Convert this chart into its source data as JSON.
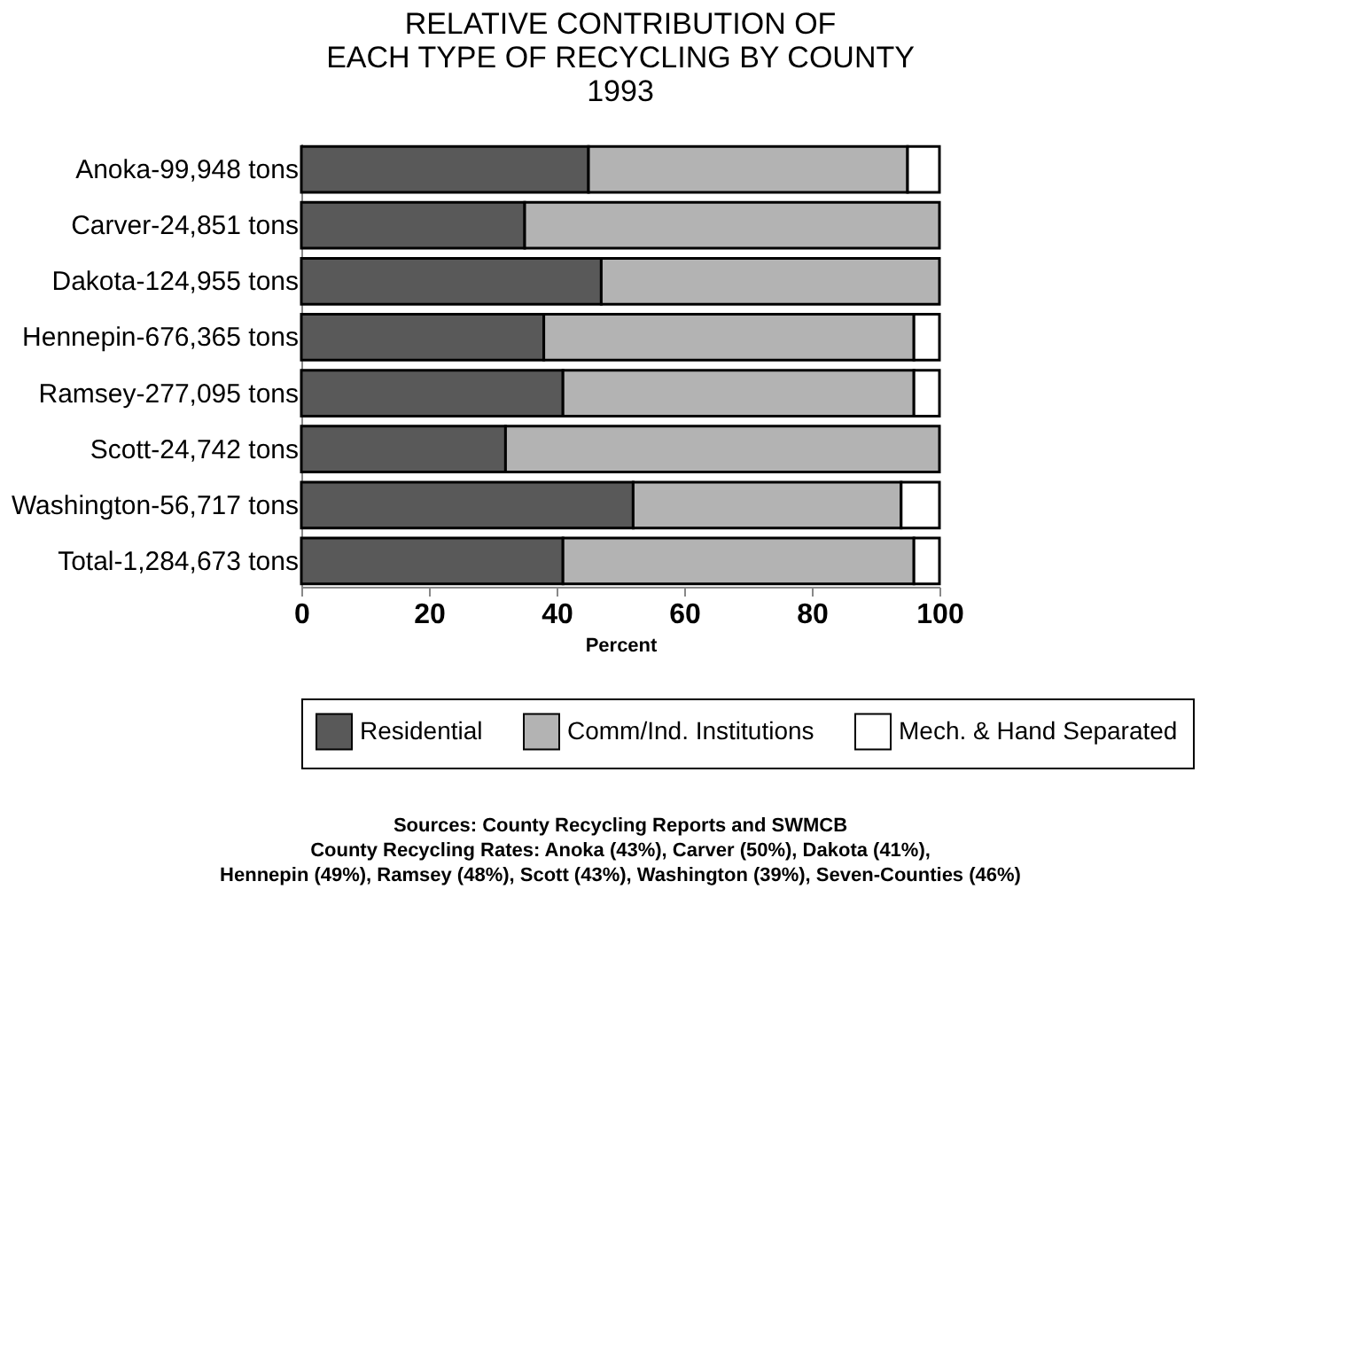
{
  "chart_data": {
    "type": "bar",
    "orientation": "horizontal",
    "stacked": true,
    "title": [
      "RELATIVE CONTRIBUTION OF",
      "EACH TYPE OF RECYCLING BY COUNTY",
      "1993"
    ],
    "xlabel": "Percent",
    "categories": [
      "Anoka-99,948 tons",
      "Carver-24,851 tons",
      "Dakota-124,955 tons",
      "Hennepin-676,365 tons",
      "Ramsey-277,095 tons",
      "Scott-24,742 tons",
      "Washington-56,717 tons",
      "Total-1,284,673 tons"
    ],
    "series": [
      {
        "name": "Residential",
        "color": "#595959",
        "values": [
          45,
          35,
          47,
          38,
          41,
          32,
          52,
          41
        ]
      },
      {
        "name": "Comm/Ind. Institutions",
        "color": "#b3b3b3",
        "values": [
          50,
          65,
          53,
          58,
          55,
          68,
          42,
          55
        ]
      },
      {
        "name": "Mech. & Hand Separated",
        "color": "#ffffff",
        "values": [
          5,
          0,
          0,
          4,
          4,
          0,
          6,
          4
        ]
      }
    ],
    "xlim": [
      0,
      100
    ],
    "xticks": [
      0,
      20,
      40,
      60,
      80,
      100
    ],
    "grid": false,
    "legend": "bottom",
    "annotations": [
      "Sources:  County Recycling Reports and SWMCB",
      "County Recycling Rates:  Anoka (43%), Carver (50%), Dakota (41%),",
      "Hennepin (49%), Ramsey (48%), Scott (43%), Washington (39%), Seven-Counties (46%)"
    ]
  }
}
